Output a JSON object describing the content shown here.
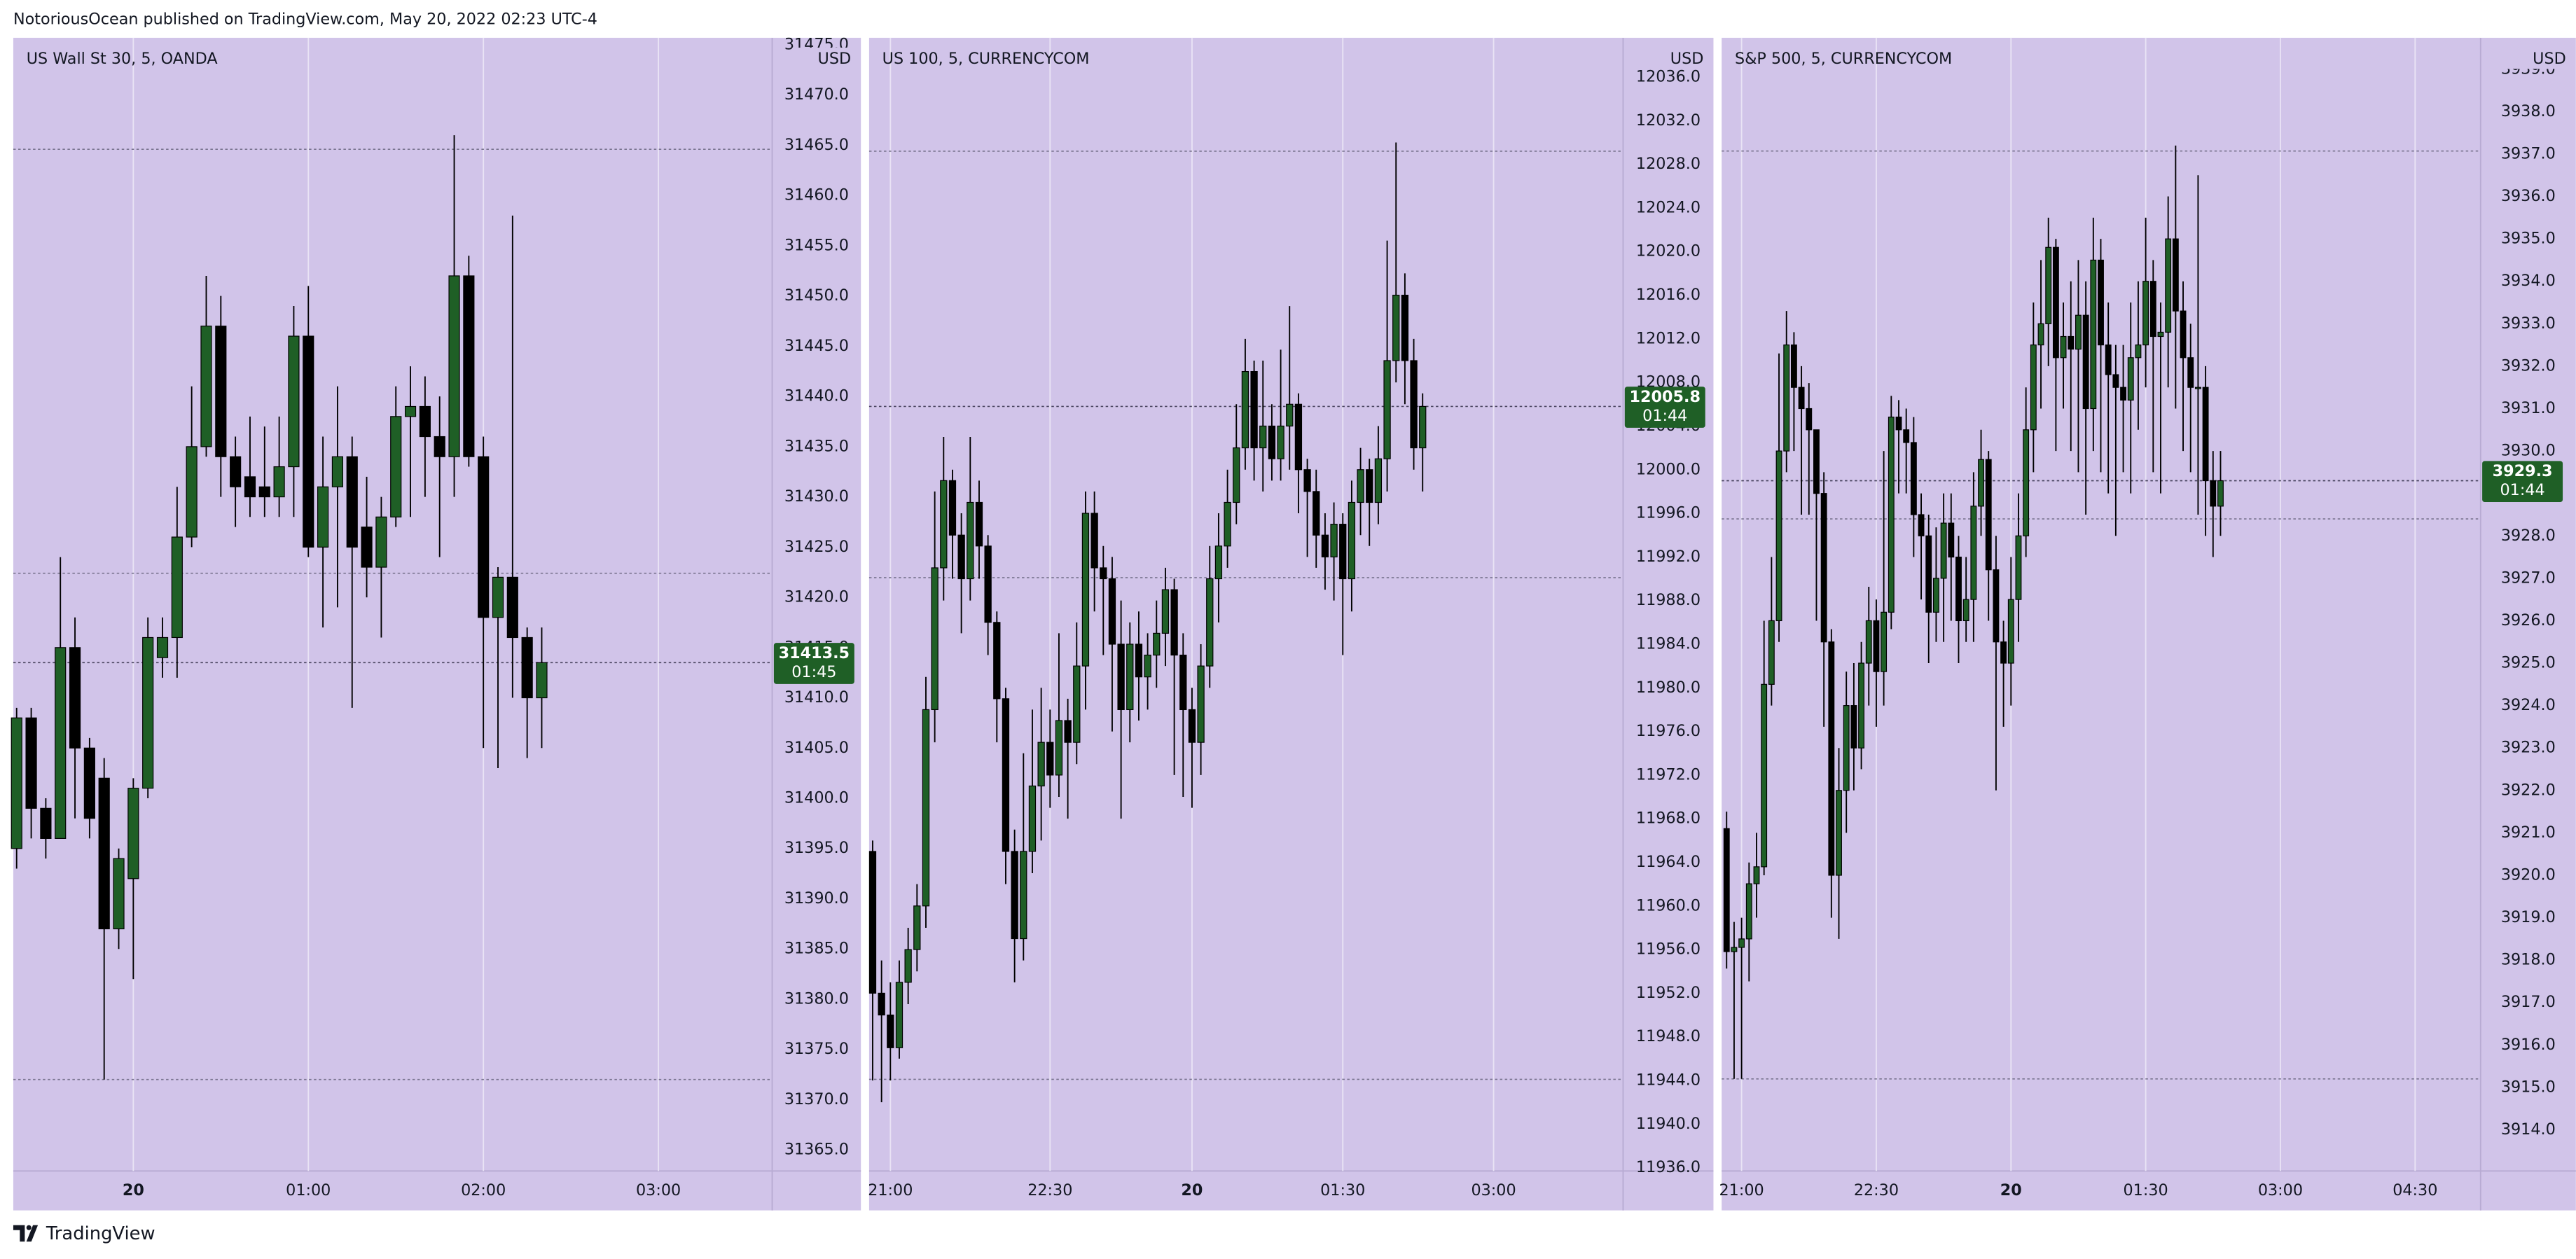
{
  "header": {
    "text": "NotoriousOcean published on TradingView.com, May 20, 2022 02:23 UTC-4"
  },
  "footer": {
    "brand": "TradingView"
  },
  "chart_data": [
    {
      "type": "candlestick",
      "title": "US Wall St 30, 5, OANDA",
      "currency": "USD",
      "countdown": "01:45",
      "background": "#d1c4e9",
      "up_color": "#1f5f26",
      "down_color": "#000000",
      "grid": true,
      "xlim": [
        -0.23,
        51.8
      ],
      "xticks": [
        {
          "value": 8,
          "label": "20",
          "bold": true
        },
        {
          "value": 20,
          "label": "01:00"
        },
        {
          "value": 32,
          "label": "02:00"
        },
        {
          "value": 44,
          "label": "03:00"
        }
      ],
      "ylim": [
        31362.9,
        31475.7
      ],
      "yticks": [
        {
          "value": 31365,
          "label": "31365.0"
        },
        {
          "value": 31370,
          "label": "31370.0"
        },
        {
          "value": 31375,
          "label": "31375.0"
        },
        {
          "value": 31380,
          "label": "31380.0"
        },
        {
          "value": 31385,
          "label": "31385.0"
        },
        {
          "value": 31390,
          "label": "31390.0"
        },
        {
          "value": 31395,
          "label": "31395.0"
        },
        {
          "value": 31400,
          "label": "31400.0"
        },
        {
          "value": 31405,
          "label": "31405.0"
        },
        {
          "value": 31410,
          "label": "31410.0"
        },
        {
          "value": 31415,
          "label": "31415.0"
        },
        {
          "value": 31420,
          "label": "31420.0"
        },
        {
          "value": 31425,
          "label": "31425.0"
        },
        {
          "value": 31430,
          "label": "31430.0"
        },
        {
          "value": 31435,
          "label": "31435.0"
        },
        {
          "value": 31440,
          "label": "31440.0"
        },
        {
          "value": 31445,
          "label": "31445.0"
        },
        {
          "value": 31450,
          "label": "31450.0"
        },
        {
          "value": 31455,
          "label": "31455.0"
        },
        {
          "value": 31460,
          "label": "31460.0"
        },
        {
          "value": 31465,
          "label": "31465.0"
        },
        {
          "value": 31470,
          "label": "31470.0"
        },
        {
          "value": 31475,
          "label": "31475.0"
        }
      ],
      "levels": [
        31464.6,
        31422.4,
        31372
      ],
      "open": [
        31395,
        31408,
        31399,
        31396,
        31415,
        31405,
        31402,
        31387,
        31392,
        31401,
        31414,
        31416,
        31426,
        31435,
        31447,
        31434,
        31432,
        31431,
        31430,
        31433,
        31446,
        31425,
        31431,
        31434,
        31427,
        31423,
        31428,
        31438,
        31439,
        31436,
        31434,
        31452,
        31434,
        31418,
        31422,
        31416,
        31410
      ],
      "high": [
        31409,
        31409,
        31400,
        31424,
        31418,
        31406,
        31404,
        31395,
        31402,
        31418,
        31418,
        31431,
        31441,
        31452,
        31450,
        31436,
        31438,
        31437,
        31438,
        31449,
        31451,
        31436,
        31441,
        31436,
        31432,
        31430,
        31441,
        31443,
        31442,
        31440,
        31466,
        31454,
        31436,
        31423,
        31458,
        31417,
        31417
      ],
      "low": [
        31393,
        31396,
        31394,
        31396,
        31398,
        31396,
        31372,
        31385,
        31382,
        31400,
        31412,
        31412,
        31425,
        31434,
        31430,
        31427,
        31428,
        31428,
        31428,
        31428,
        31424,
        31417,
        31419,
        31409,
        31420,
        31416,
        31427,
        31428,
        31430,
        31424,
        31430,
        31433,
        31405,
        31403,
        31410,
        31404,
        31405
      ],
      "close": [
        31408,
        31399,
        31396,
        31415,
        31405,
        31398,
        31387,
        31394,
        31401,
        31416,
        31416,
        31426,
        31435,
        31447,
        31434,
        31431,
        31430,
        31430,
        31433,
        31446,
        31425,
        31431,
        31434,
        31425,
        31423,
        31428,
        31438,
        31439,
        31436,
        31434,
        31452,
        31434,
        31418,
        31422,
        31416,
        31410,
        31413.5
      ]
    },
    {
      "type": "candlestick",
      "title": "US 100, 5, CURRENCYCOM",
      "currency": "USD",
      "countdown": "01:44",
      "background": "#d1c4e9",
      "up_color": "#1f5f26",
      "down_color": "#000000",
      "grid": true,
      "xlim": [
        -0.4,
        84.6
      ],
      "xticks": [
        {
          "value": 2,
          "label": "21:00"
        },
        {
          "value": 20,
          "label": "22:30"
        },
        {
          "value": 36,
          "label": "20",
          "bold": true
        },
        {
          "value": 53,
          "label": "01:30"
        },
        {
          "value": 70,
          "label": "03:00"
        }
      ],
      "ylim": [
        11935.7,
        12039.6
      ],
      "yticks": [
        {
          "value": 11936,
          "label": "11936.0"
        },
        {
          "value": 11940,
          "label": "11940.0"
        },
        {
          "value": 11944,
          "label": "11944.0"
        },
        {
          "value": 11948,
          "label": "11948.0"
        },
        {
          "value": 11952,
          "label": "11952.0"
        },
        {
          "value": 11956,
          "label": "11956.0"
        },
        {
          "value": 11960,
          "label": "11960.0"
        },
        {
          "value": 11964,
          "label": "11964.0"
        },
        {
          "value": 11968,
          "label": "11968.0"
        },
        {
          "value": 11972,
          "label": "11972.0"
        },
        {
          "value": 11976,
          "label": "11976.0"
        },
        {
          "value": 11980,
          "label": "11980.0"
        },
        {
          "value": 11984,
          "label": "11984.0"
        },
        {
          "value": 11988,
          "label": "11988.0"
        },
        {
          "value": 11992,
          "label": "11992.0"
        },
        {
          "value": 11996,
          "label": "11996.0"
        },
        {
          "value": 12000,
          "label": "12000.0"
        },
        {
          "value": 12004,
          "label": "12004.0"
        },
        {
          "value": 12008,
          "label": "12008.0"
        },
        {
          "value": 12012,
          "label": "12012.0"
        },
        {
          "value": 12016,
          "label": "12016.0"
        },
        {
          "value": 12020,
          "label": "12020.0"
        },
        {
          "value": 12024,
          "label": "12024.0"
        },
        {
          "value": 12028,
          "label": "12028.0"
        },
        {
          "value": 12032,
          "label": "12032.0"
        },
        {
          "value": 12036,
          "label": "12036.0"
        }
      ],
      "levels": [
        12029.2,
        11990.1,
        11944.1
      ],
      "open": [
        11965,
        11952,
        11950,
        11947,
        11953,
        11956,
        11960,
        11978,
        11991,
        11999,
        11994,
        11990,
        11997,
        11993,
        11986,
        11979,
        11965,
        11957,
        11965,
        11971,
        11975,
        11972,
        11977,
        11975,
        11982,
        11996,
        11991,
        11990,
        11984,
        11978,
        11984,
        11981,
        11983,
        11985,
        11989,
        11983,
        11978,
        11975,
        11982,
        11990,
        11993,
        11997,
        12002,
        12009,
        12002,
        12004,
        12001,
        12004,
        12006,
        12000,
        11998,
        11994,
        11992,
        11995,
        11990,
        11997,
        12000,
        11997,
        12001,
        12010,
        12016,
        12010,
        12002
      ],
      "high": [
        11966,
        11955,
        11953,
        11955,
        11958,
        11962,
        11981,
        11998,
        12003,
        12000,
        11996,
        12003,
        11999,
        11994,
        11987,
        11980,
        11967,
        11974,
        11978,
        11980,
        11978,
        11985,
        11979,
        11986,
        11998,
        11998,
        11993,
        11992,
        11988,
        11986,
        11987,
        11985,
        11988,
        11991,
        11990,
        11985,
        11980,
        11984,
        11993,
        11996,
        12000,
        12006,
        12012,
        12010,
        12010,
        12006,
        12011,
        12015,
        12007,
        12001,
        12000,
        11996,
        11997,
        11996,
        11999,
        12002,
        12001,
        12004,
        12021,
        12030,
        12018,
        12012,
        12007
      ],
      "low": [
        11944,
        11942,
        11944,
        11946,
        11951,
        11954,
        11958,
        11975,
        11988,
        11990,
        11985,
        11988,
        11990,
        11983,
        11975,
        11962,
        11953,
        11955,
        11963,
        11966,
        11969,
        11970,
        11968,
        11973,
        11978,
        11987,
        11983,
        11976,
        11968,
        11975,
        11977,
        11978,
        11980,
        11982,
        11972,
        11970,
        11969,
        11972,
        11980,
        11986,
        11991,
        11995,
        12000,
        11999,
        11998,
        11999,
        11999,
        12000,
        11996,
        11992,
        11991,
        11989,
        11988,
        11983,
        11987,
        11994,
        11993,
        11995,
        11998,
        12008,
        12006,
        12000,
        11998
      ],
      "close": [
        11952,
        11950,
        11947,
        11953,
        11956,
        11960,
        11978,
        11991,
        11999,
        11994,
        11990,
        11997,
        11993,
        11986,
        11979,
        11965,
        11957,
        11965,
        11971,
        11975,
        11972,
        11977,
        11975,
        11982,
        11996,
        11991,
        11990,
        11984,
        11978,
        11984,
        11981,
        11983,
        11985,
        11989,
        11983,
        11978,
        11975,
        11982,
        11990,
        11993,
        11997,
        12002,
        12009,
        12002,
        12004,
        12001,
        12004,
        12006,
        12000,
        11998,
        11994,
        11992,
        11995,
        11990,
        11997,
        12000,
        11997,
        12001,
        12010,
        12016,
        12010,
        12002,
        12005.8
      ]
    },
    {
      "type": "candlestick",
      "title": "S&P 500, 5, CURRENCYCOM",
      "currency": "USD",
      "countdown": "01:44",
      "background": "#d1c4e9",
      "up_color": "#1f5f26",
      "down_color": "#000000",
      "grid": true,
      "xlim": [
        -0.66,
        100.75
      ],
      "xticks": [
        {
          "value": 2,
          "label": "21:00"
        },
        {
          "value": 20,
          "label": "22:30"
        },
        {
          "value": 38,
          "label": "20",
          "bold": true
        },
        {
          "value": 56,
          "label": "01:30"
        },
        {
          "value": 74,
          "label": "03:00"
        },
        {
          "value": 92,
          "label": "04:30"
        }
      ],
      "ylim": [
        3913.03,
        3939.74
      ],
      "yticks": [
        {
          "value": 3914,
          "label": "3914.0"
        },
        {
          "value": 3915,
          "label": "3915.0"
        },
        {
          "value": 3916,
          "label": "3916.0"
        },
        {
          "value": 3917,
          "label": "3917.0"
        },
        {
          "value": 3918,
          "label": "3918.0"
        },
        {
          "value": 3919,
          "label": "3919.0"
        },
        {
          "value": 3920,
          "label": "3920.0"
        },
        {
          "value": 3921,
          "label": "3921.0"
        },
        {
          "value": 3922,
          "label": "3922.0"
        },
        {
          "value": 3923,
          "label": "3923.0"
        },
        {
          "value": 3924,
          "label": "3924.0"
        },
        {
          "value": 3925,
          "label": "3925.0"
        },
        {
          "value": 3926,
          "label": "3926.0"
        },
        {
          "value": 3927,
          "label": "3927.0"
        },
        {
          "value": 3928,
          "label": "3928.0"
        },
        {
          "value": 3929,
          "label": "3929.0"
        },
        {
          "value": 3930,
          "label": "3930.0"
        },
        {
          "value": 3931,
          "label": "3931.0"
        },
        {
          "value": 3932,
          "label": "3932.0"
        },
        {
          "value": 3933,
          "label": "3933.0"
        },
        {
          "value": 3934,
          "label": "3934.0"
        },
        {
          "value": 3935,
          "label": "3935.0"
        },
        {
          "value": 3936,
          "label": "3936.0"
        },
        {
          "value": 3937,
          "label": "3937.0"
        },
        {
          "value": 3938,
          "label": "3938.0"
        },
        {
          "value": 3939,
          "label": "3939.0"
        }
      ],
      "levels": [
        3937.07,
        3928.4,
        3915.2
      ],
      "open": [
        3921.1,
        3918.2,
        3918.3,
        3918.5,
        3919.8,
        3920.2,
        3924.5,
        3926,
        3930,
        3932.5,
        3931.5,
        3931,
        3930.5,
        3929,
        3925.5,
        3920,
        3922,
        3924,
        3923,
        3925,
        3926,
        3924.8,
        3926.2,
        3930.8,
        3930.5,
        3930.2,
        3928.5,
        3928,
        3926.2,
        3927,
        3928.3,
        3927.5,
        3926,
        3926.5,
        3928.7,
        3929.8,
        3927.2,
        3925.5,
        3925,
        3926.5,
        3928,
        3930.5,
        3932.5,
        3933,
        3934.8,
        3932.2,
        3932.7,
        3932.4,
        3933.2,
        3931,
        3934.5,
        3932.5,
        3931.8,
        3931.5,
        3931.2,
        3932.2,
        3932.5,
        3934,
        3932.7,
        3932.8,
        3935,
        3933.3,
        3932.2,
        3931.5,
        3931.5,
        3929.3,
        3928.7
      ],
      "high": [
        3921.5,
        3918.9,
        3919.0,
        3920.3,
        3921.0,
        3926.0,
        3927.5,
        3932.3,
        3933.3,
        3932.8,
        3932.0,
        3931.6,
        3930.5,
        3929.5,
        3925.8,
        3923.0,
        3924.8,
        3925.0,
        3925.5,
        3926.8,
        3926.5,
        3930.0,
        3931.3,
        3931.2,
        3931.0,
        3930.8,
        3929.0,
        3928.5,
        3928.2,
        3929.0,
        3929.0,
        3928.0,
        3927.5,
        3929.5,
        3930.5,
        3930.0,
        3928.0,
        3926.0,
        3927.5,
        3929.0,
        3931.5,
        3933.5,
        3934.5,
        3935.5,
        3935.0,
        3933.5,
        3934.0,
        3934.5,
        3934.0,
        3935.5,
        3935.0,
        3933.5,
        3932.5,
        3932.5,
        3933.5,
        3934.0,
        3935.5,
        3934.5,
        3933.5,
        3936.0,
        3937.2,
        3934.0,
        3933.0,
        3936.5,
        3932.0,
        3930.0,
        3930.0
      ],
      "low": [
        3917.8,
        3915.2,
        3915.2,
        3917.5,
        3919.0,
        3920.0,
        3924.0,
        3925.5,
        3929.5,
        3930.0,
        3928.5,
        3928.5,
        3926.0,
        3923.5,
        3919.0,
        3918.5,
        3921.0,
        3922.0,
        3922.5,
        3924.0,
        3923.5,
        3924.0,
        3925.8,
        3929.0,
        3929.0,
        3927.5,
        3926.5,
        3925.0,
        3925.5,
        3925.5,
        3926.0,
        3925.0,
        3925.5,
        3925.5,
        3928.0,
        3926.0,
        3922.0,
        3923.5,
        3924.0,
        3925.5,
        3927.5,
        3929.5,
        3931.0,
        3932.0,
        3930.0,
        3931.0,
        3930.0,
        3929.5,
        3928.5,
        3930.0,
        3929.5,
        3929.0,
        3928.0,
        3929.5,
        3929.0,
        3930.5,
        3931.5,
        3929.5,
        3929.0,
        3931.5,
        3931.0,
        3930.0,
        3929.5,
        3928.5,
        3928.0,
        3927.5,
        3928.0
      ],
      "close": [
        3918.2,
        3918.3,
        3918.5,
        3919.8,
        3920.2,
        3924.5,
        3926,
        3930,
        3932.5,
        3931.5,
        3931,
        3930.5,
        3929,
        3925.5,
        3920,
        3922,
        3924,
        3923,
        3925,
        3926,
        3924.8,
        3926.2,
        3930.8,
        3930.5,
        3930.2,
        3928.5,
        3928,
        3926.2,
        3927,
        3928.3,
        3927.5,
        3926,
        3926.5,
        3928.7,
        3929.8,
        3927.2,
        3925.5,
        3925,
        3926.5,
        3928,
        3930.5,
        3932.5,
        3933,
        3934.8,
        3932.2,
        3932.7,
        3932.4,
        3933.2,
        3931,
        3934.5,
        3932.5,
        3931.8,
        3931.5,
        3931.2,
        3932.2,
        3932.5,
        3934,
        3932.7,
        3932.8,
        3935,
        3933.3,
        3932.2,
        3931.5,
        3931.5,
        3929.3,
        3928.7,
        3929.3
      ]
    }
  ]
}
